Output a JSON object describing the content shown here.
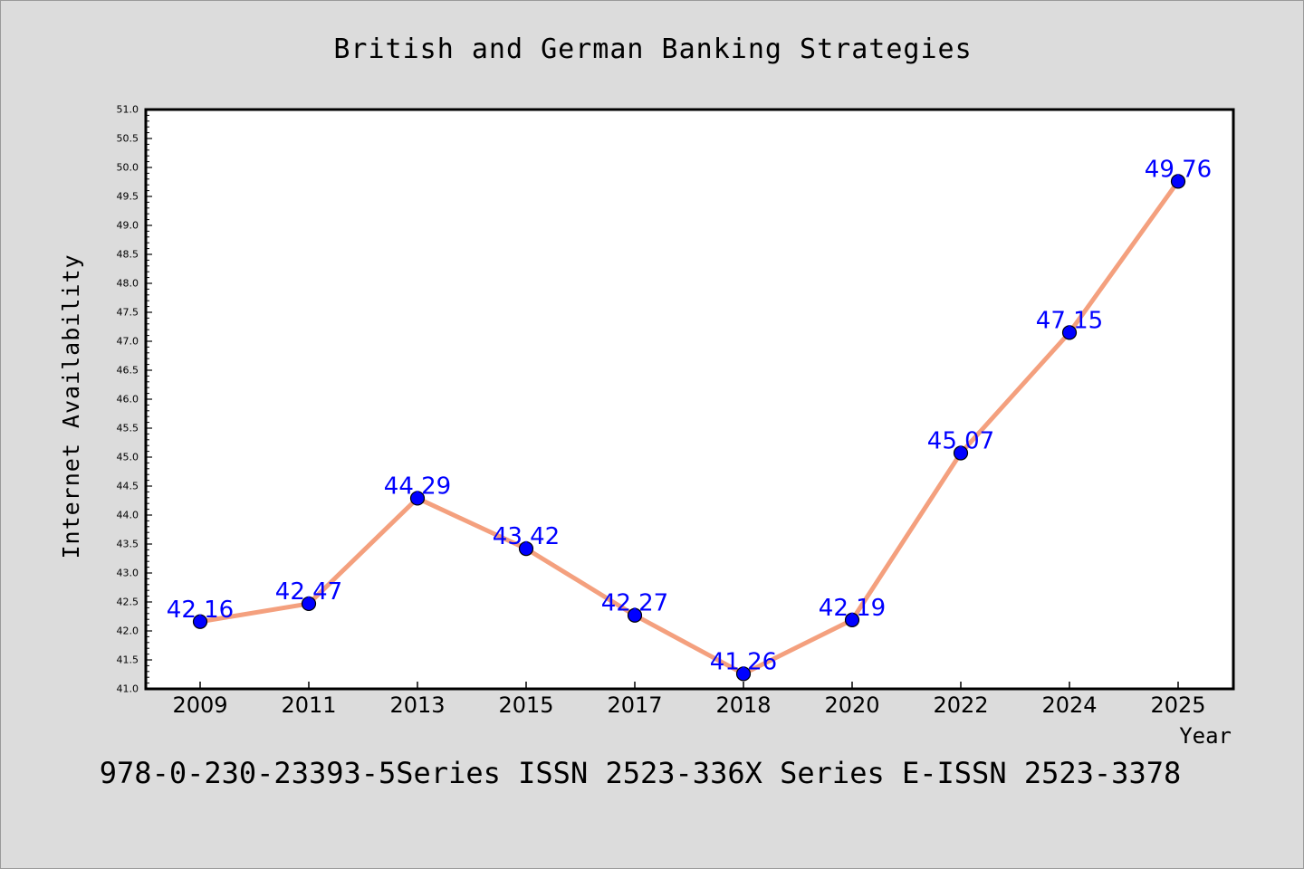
{
  "chart_data": {
    "type": "line",
    "title": "British and German Banking Strategies",
    "xlabel": "Year",
    "ylabel": "Internet Availability",
    "categories": [
      "2009",
      "2011",
      "2013",
      "2015",
      "2017",
      "2018",
      "2020",
      "2022",
      "2024",
      "2025"
    ],
    "series": [
      {
        "values": [
          42.16,
          42.47,
          44.29,
          43.42,
          42.27,
          41.26,
          42.19,
          45.07,
          47.15,
          49.76
        ],
        "labels": [
          "42.16",
          "42.47",
          "44.29",
          "43.42",
          "42.27",
          "41.26",
          "42.19",
          "45.07",
          "47.15",
          "49.76"
        ],
        "line_color": "#f4a07e",
        "marker_color": "#0000ff"
      }
    ],
    "ylim": [
      41.0,
      51.0
    ],
    "y_ticks": [
      "41.0",
      "41.5",
      "42.0",
      "42.5",
      "43.0",
      "43.5",
      "44.0",
      "44.5",
      "45.0",
      "45.5",
      "46.0",
      "46.5",
      "47.0",
      "47.5",
      "48.0",
      "48.5",
      "49.0",
      "49.5",
      "50.0",
      "50.5",
      "51.0"
    ],
    "grid": false,
    "legend": "none",
    "label_color": "#0000ff",
    "background_color": "#dcdcdc",
    "plot_background": "#ffffff"
  },
  "footer": {
    "text": "978-0-230-23393-5Series ISSN 2523-336X Series E-ISSN 2523-3378"
  }
}
